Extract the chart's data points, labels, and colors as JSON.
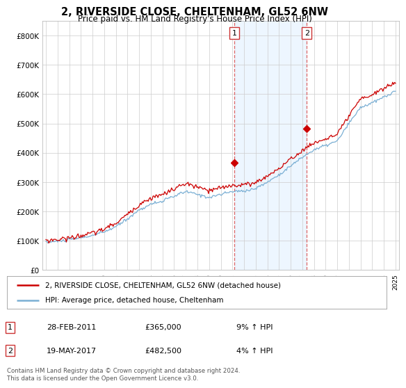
{
  "title": "2, RIVERSIDE CLOSE, CHELTENHAM, GL52 6NW",
  "subtitle": "Price paid vs. HM Land Registry's House Price Index (HPI)",
  "ylim": [
    0,
    850000
  ],
  "yticks": [
    0,
    100000,
    200000,
    300000,
    400000,
    500000,
    600000,
    700000,
    800000
  ],
  "ytick_labels": [
    "£0",
    "£100K",
    "£200K",
    "£300K",
    "£400K",
    "£500K",
    "£600K",
    "£700K",
    "£800K"
  ],
  "line1_color": "#cc0000",
  "line2_color": "#7aafd4",
  "fill_color": "#ddeeff",
  "fill_alpha": 0.5,
  "vline_color": "#dd6666",
  "transaction1_date": 2011.16,
  "transaction1_price": 365000,
  "transaction1_label": "1",
  "transaction2_date": 2017.38,
  "transaction2_price": 482500,
  "transaction2_label": "2",
  "legend_line1": "2, RIVERSIDE CLOSE, CHELTENHAM, GL52 6NW (detached house)",
  "legend_line2": "HPI: Average price, detached house, Cheltenham",
  "table_rows": [
    [
      "1",
      "28-FEB-2011",
      "£365,000",
      "9% ↑ HPI"
    ],
    [
      "2",
      "19-MAY-2017",
      "£482,500",
      "4% ↑ HPI"
    ]
  ],
  "footer": "Contains HM Land Registry data © Crown copyright and database right 2024.\nThis data is licensed under the Open Government Licence v3.0.",
  "background_color": "#ffffff",
  "hpi_keypoints": [
    [
      1995,
      95000
    ],
    [
      1996,
      98000
    ],
    [
      1997,
      103000
    ],
    [
      1998,
      110000
    ],
    [
      1999,
      118000
    ],
    [
      2000,
      130000
    ],
    [
      2001,
      148000
    ],
    [
      2002,
      175000
    ],
    [
      2003,
      205000
    ],
    [
      2004,
      225000
    ],
    [
      2005,
      235000
    ],
    [
      2006,
      252000
    ],
    [
      2007,
      268000
    ],
    [
      2008,
      258000
    ],
    [
      2009,
      248000
    ],
    [
      2010,
      258000
    ],
    [
      2011,
      268000
    ],
    [
      2012,
      270000
    ],
    [
      2013,
      278000
    ],
    [
      2014,
      300000
    ],
    [
      2015,
      325000
    ],
    [
      2016,
      355000
    ],
    [
      2017,
      385000
    ],
    [
      2018,
      410000
    ],
    [
      2019,
      425000
    ],
    [
      2020,
      440000
    ],
    [
      2021,
      500000
    ],
    [
      2022,
      555000
    ],
    [
      2023,
      570000
    ],
    [
      2024,
      590000
    ],
    [
      2025,
      610000
    ]
  ],
  "pp_offset_keypoints": [
    [
      1995,
      1.06
    ],
    [
      1999,
      1.07
    ],
    [
      2003,
      1.09
    ],
    [
      2007,
      1.1
    ],
    [
      2009,
      1.09
    ],
    [
      2011,
      1.08
    ],
    [
      2014,
      1.07
    ],
    [
      2017,
      1.06
    ],
    [
      2020,
      1.05
    ],
    [
      2025,
      1.05
    ]
  ],
  "noise_hpi_std": 2500,
  "noise_pp_std": 4000,
  "hpi_seed": 10,
  "pp_seed": 20,
  "n_points": 360,
  "xlim_start": 1995,
  "xlim_end": 2025,
  "xticks": [
    1995,
    1996,
    1997,
    1998,
    1999,
    2000,
    2001,
    2002,
    2003,
    2004,
    2005,
    2006,
    2007,
    2008,
    2009,
    2010,
    2011,
    2012,
    2013,
    2014,
    2015,
    2016,
    2017,
    2018,
    2019,
    2020,
    2021,
    2022,
    2023,
    2024,
    2025
  ]
}
